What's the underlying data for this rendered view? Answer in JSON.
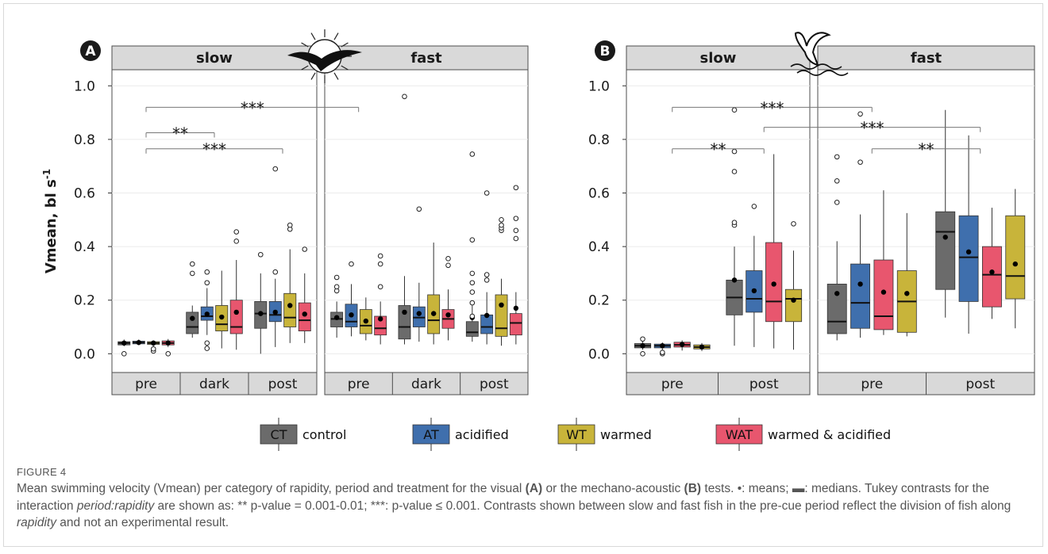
{
  "figure": {
    "label": "FIGURE 4",
    "caption_parts": [
      {
        "t": "Mean swimming velocity (Vmean) per category of rapidity, period and treatment for the visual "
      },
      {
        "t": "(A)",
        "s": "b"
      },
      {
        "t": " or the mechano-acoustic "
      },
      {
        "t": "(B)",
        "s": "b"
      },
      {
        "t": " tests. •: means; ▬: medians. Tukey contrasts for the interaction "
      },
      {
        "t": "period:rapidity",
        "s": "i"
      },
      {
        "t": " are shown as: ** p-value = 0.001-0.01; ***: p-value ≤ 0.001. Contrasts shown between slow and fast fish in the pre-cue period reflect the division of fish along "
      },
      {
        "t": "rapidity",
        "s": "i"
      },
      {
        "t": " and not an experimental result."
      }
    ]
  },
  "legend": [
    {
      "code": "CT",
      "label": "control"
    },
    {
      "code": "AT",
      "label": "acidified"
    },
    {
      "code": "WT",
      "label": "warmed"
    },
    {
      "code": "WAT",
      "label": "warmed & acidified"
    }
  ],
  "colors": {
    "CT": "#6b6b6b",
    "AT": "#3f6fad",
    "WT": "#c8b43a",
    "WAT": "#e8566e",
    "strip": "#d9d9d9"
  },
  "icons": {
    "A": "sun-bird-shadow-icon",
    "B": "seabird-splash-icon"
  },
  "chart_data": [
    {
      "type": "box",
      "panel": "A",
      "ylabel": "Vmean, bl s",
      "ylabel_sup": "-1",
      "ylim": [
        -0.07,
        1.06
      ],
      "yticks": [
        0.0,
        0.2,
        0.4,
        0.6,
        0.8,
        1.0
      ],
      "ytick_labels": [
        "0.0",
        "0.2",
        "0.4",
        "0.6",
        "0.8",
        "1.0"
      ],
      "facets": [
        {
          "label": "slow",
          "periods": [
            "pre",
            "dark",
            "post"
          ],
          "groups": [
            [
              {
                "t": "CT",
                "q1": 0.033,
                "med": 0.04,
                "q3": 0.045,
                "lo": 0.028,
                "hi": 0.053,
                "mean": 0.04,
                "out": [
                  0.0
                ]
              },
              {
                "t": "AT",
                "q1": 0.037,
                "med": 0.042,
                "q3": 0.047,
                "lo": 0.032,
                "hi": 0.053,
                "mean": 0.042,
                "out": []
              },
              {
                "t": "WT",
                "q1": 0.035,
                "med": 0.04,
                "q3": 0.045,
                "lo": 0.025,
                "hi": 0.05,
                "mean": 0.04,
                "out": [
                  0.01,
                  0.018
                ]
              },
              {
                "t": "WAT",
                "q1": 0.033,
                "med": 0.04,
                "q3": 0.048,
                "lo": 0.025,
                "hi": 0.055,
                "mean": 0.04,
                "out": [
                  0.0
                ]
              }
            ],
            [
              {
                "t": "CT",
                "q1": 0.075,
                "med": 0.1,
                "q3": 0.155,
                "lo": 0.06,
                "hi": 0.18,
                "mean": 0.132,
                "out": [
                  0.3,
                  0.335
                ]
              },
              {
                "t": "AT",
                "q1": 0.125,
                "med": 0.14,
                "q3": 0.175,
                "lo": 0.07,
                "hi": 0.245,
                "mean": 0.148,
                "out": [
                  0.02,
                  0.04,
                  0.265,
                  0.305
                ]
              },
              {
                "t": "WT",
                "q1": 0.085,
                "med": 0.11,
                "q3": 0.18,
                "lo": 0.02,
                "hi": 0.31,
                "mean": 0.137,
                "out": []
              },
              {
                "t": "WAT",
                "q1": 0.075,
                "med": 0.1,
                "q3": 0.2,
                "lo": 0.015,
                "hi": 0.35,
                "mean": 0.155,
                "out": [
                  0.42,
                  0.455
                ]
              }
            ],
            [
              {
                "t": "CT",
                "q1": 0.095,
                "med": 0.15,
                "q3": 0.195,
                "lo": 0.0,
                "hi": 0.3,
                "mean": 0.15,
                "out": [
                  0.37
                ]
              },
              {
                "t": "AT",
                "q1": 0.12,
                "med": 0.145,
                "q3": 0.195,
                "lo": 0.025,
                "hi": 0.28,
                "mean": 0.155,
                "out": [
                  0.305,
                  0.69
                ]
              },
              {
                "t": "WT",
                "q1": 0.1,
                "med": 0.135,
                "q3": 0.225,
                "lo": 0.04,
                "hi": 0.39,
                "mean": 0.18,
                "out": [
                  0.465,
                  0.48
                ]
              },
              {
                "t": "WAT",
                "q1": 0.085,
                "med": 0.125,
                "q3": 0.19,
                "lo": 0.04,
                "hi": 0.3,
                "mean": 0.148,
                "out": [
                  0.39
                ]
              }
            ]
          ]
        },
        {
          "label": "fast",
          "periods": [
            "pre",
            "dark",
            "post"
          ],
          "groups": [
            [
              {
                "t": "CT",
                "q1": 0.1,
                "med": 0.13,
                "q3": 0.155,
                "lo": 0.06,
                "hi": 0.195,
                "mean": 0.135,
                "out": [
                  0.235,
                  0.25,
                  0.285
                ]
              },
              {
                "t": "AT",
                "q1": 0.1,
                "med": 0.12,
                "q3": 0.185,
                "lo": 0.065,
                "hi": 0.26,
                "mean": 0.145,
                "out": [
                  0.335
                ]
              },
              {
                "t": "WT",
                "q1": 0.075,
                "med": 0.105,
                "q3": 0.165,
                "lo": 0.05,
                "hi": 0.21,
                "mean": 0.122,
                "out": []
              },
              {
                "t": "WAT",
                "q1": 0.07,
                "med": 0.095,
                "q3": 0.14,
                "lo": 0.035,
                "hi": 0.195,
                "mean": 0.13,
                "out": [
                  0.25,
                  0.335,
                  0.365
                ]
              }
            ],
            [
              {
                "t": "CT",
                "q1": 0.055,
                "med": 0.1,
                "q3": 0.18,
                "lo": 0.035,
                "hi": 0.29,
                "mean": 0.155,
                "out": [
                  0.96
                ]
              },
              {
                "t": "AT",
                "q1": 0.1,
                "med": 0.135,
                "q3": 0.175,
                "lo": 0.045,
                "hi": 0.265,
                "mean": 0.15,
                "out": [
                  0.54
                ]
              },
              {
                "t": "WT",
                "q1": 0.075,
                "med": 0.125,
                "q3": 0.22,
                "lo": 0.035,
                "hi": 0.415,
                "mean": 0.15,
                "out": []
              },
              {
                "t": "WAT",
                "q1": 0.095,
                "med": 0.13,
                "q3": 0.165,
                "lo": 0.05,
                "hi": 0.24,
                "mean": 0.145,
                "out": [
                  0.33,
                  0.355
                ]
              }
            ],
            [
              {
                "t": "CT",
                "q1": 0.065,
                "med": 0.08,
                "q3": 0.12,
                "lo": 0.045,
                "hi": 0.18,
                "mean": 0.135,
                "out": [
                  0.14,
                  0.19,
                  0.23,
                  0.265,
                  0.3,
                  0.425,
                  0.745
                ]
              },
              {
                "t": "AT",
                "q1": 0.075,
                "med": 0.1,
                "q3": 0.145,
                "lo": 0.035,
                "hi": 0.23,
                "mean": 0.143,
                "out": [
                  0.275,
                  0.295,
                  0.6
                ]
              },
              {
                "t": "WT",
                "q1": 0.065,
                "med": 0.095,
                "q3": 0.22,
                "lo": 0.03,
                "hi": 0.28,
                "mean": 0.182,
                "out": [
                  0.46,
                  0.47,
                  0.48,
                  0.5
                ]
              },
              {
                "t": "WAT",
                "q1": 0.07,
                "med": 0.115,
                "q3": 0.15,
                "lo": 0.035,
                "hi": 0.23,
                "mean": 0.17,
                "out": [
                  0.43,
                  0.46,
                  0.505,
                  0.62
                ]
              }
            ]
          ]
        }
      ],
      "contrasts": [
        {
          "label": "***",
          "facet1": 0,
          "period1": 0,
          "facet2": 1,
          "period2": 0,
          "y": 0.92
        },
        {
          "label": "**",
          "facet1": 0,
          "period1": 0,
          "facet2": 0,
          "period2": 1,
          "y": 0.825
        },
        {
          "label": "***",
          "facet1": 0,
          "period1": 0,
          "facet2": 0,
          "period2": 2,
          "y": 0.765
        }
      ]
    },
    {
      "type": "box",
      "panel": "B",
      "ylim": [
        -0.07,
        1.06
      ],
      "yticks": [
        0.0,
        0.2,
        0.4,
        0.6,
        0.8,
        1.0
      ],
      "ytick_labels": [
        "0.0",
        "0.2",
        "0.4",
        "0.6",
        "0.8",
        "1.0"
      ],
      "facets": [
        {
          "label": "slow",
          "periods": [
            "pre",
            "post"
          ],
          "groups": [
            [
              {
                "t": "CT",
                "q1": 0.022,
                "med": 0.03,
                "q3": 0.038,
                "lo": 0.015,
                "hi": 0.045,
                "mean": 0.03,
                "out": [
                  0.0,
                  0.055
                ]
              },
              {
                "t": "AT",
                "q1": 0.022,
                "med": 0.03,
                "q3": 0.036,
                "lo": 0.012,
                "hi": 0.042,
                "mean": 0.03,
                "out": [
                  0.0,
                  0.005
                ]
              },
              {
                "t": "WAT",
                "q1": 0.025,
                "med": 0.033,
                "q3": 0.043,
                "lo": 0.012,
                "hi": 0.05,
                "mean": 0.035,
                "out": []
              },
              {
                "t": "WT",
                "q1": 0.018,
                "med": 0.025,
                "q3": 0.033,
                "lo": 0.01,
                "hi": 0.04,
                "mean": 0.025,
                "out": []
              }
            ],
            [
              {
                "t": "CT",
                "q1": 0.145,
                "med": 0.21,
                "q3": 0.275,
                "lo": 0.03,
                "hi": 0.4,
                "mean": 0.275,
                "out": [
                  0.48,
                  0.49,
                  0.68,
                  0.755,
                  0.91
                ]
              },
              {
                "t": "AT",
                "q1": 0.155,
                "med": 0.205,
                "q3": 0.31,
                "lo": 0.025,
                "hi": 0.44,
                "mean": 0.235,
                "out": [
                  0.55
                ]
              },
              {
                "t": "WAT",
                "q1": 0.12,
                "med": 0.195,
                "q3": 0.415,
                "lo": 0.02,
                "hi": 0.745,
                "mean": 0.26,
                "out": []
              },
              {
                "t": "WT",
                "q1": 0.12,
                "med": 0.205,
                "q3": 0.24,
                "lo": 0.015,
                "hi": 0.385,
                "mean": 0.2,
                "out": [
                  0.485
                ]
              }
            ]
          ]
        },
        {
          "label": "fast",
          "periods": [
            "pre",
            "post"
          ],
          "groups": [
            [
              {
                "t": "CT",
                "q1": 0.075,
                "med": 0.12,
                "q3": 0.26,
                "lo": 0.05,
                "hi": 0.42,
                "mean": 0.225,
                "out": [
                  0.565,
                  0.645,
                  0.735
                ]
              },
              {
                "t": "AT",
                "q1": 0.095,
                "med": 0.19,
                "q3": 0.335,
                "lo": 0.06,
                "hi": 0.52,
                "mean": 0.26,
                "out": [
                  0.715,
                  0.895
                ]
              },
              {
                "t": "WAT",
                "q1": 0.09,
                "med": 0.14,
                "q3": 0.35,
                "lo": 0.07,
                "hi": 0.61,
                "mean": 0.23,
                "out": []
              },
              {
                "t": "WT",
                "q1": 0.08,
                "med": 0.195,
                "q3": 0.31,
                "lo": 0.065,
                "hi": 0.525,
                "mean": 0.225,
                "out": []
              }
            ],
            [
              {
                "t": "CT",
                "q1": 0.24,
                "med": 0.455,
                "q3": 0.53,
                "lo": 0.135,
                "hi": 0.91,
                "mean": 0.435,
                "out": []
              },
              {
                "t": "AT",
                "q1": 0.195,
                "med": 0.36,
                "q3": 0.515,
                "lo": 0.075,
                "hi": 0.815,
                "mean": 0.38,
                "out": []
              },
              {
                "t": "WAT",
                "q1": 0.175,
                "med": 0.295,
                "q3": 0.4,
                "lo": 0.13,
                "hi": 0.545,
                "mean": 0.305,
                "out": []
              },
              {
                "t": "WT",
                "q1": 0.205,
                "med": 0.29,
                "q3": 0.515,
                "lo": 0.095,
                "hi": 0.615,
                "mean": 0.335,
                "out": []
              }
            ]
          ]
        }
      ],
      "contrasts": [
        {
          "label": "***",
          "facet1": 0,
          "period1": 0,
          "facet2": 1,
          "period2": 0,
          "y": 0.92
        },
        {
          "label": "***",
          "facet1": 0,
          "period1": 1,
          "facet2": 1,
          "period2": 1,
          "y": 0.845
        },
        {
          "label": "**",
          "facet1": 0,
          "period1": 0,
          "facet2": 0,
          "period2": 1,
          "y": 0.765
        },
        {
          "label": "**",
          "facet1": 1,
          "period1": 0,
          "facet2": 1,
          "period2": 1,
          "y": 0.765
        }
      ]
    }
  ]
}
